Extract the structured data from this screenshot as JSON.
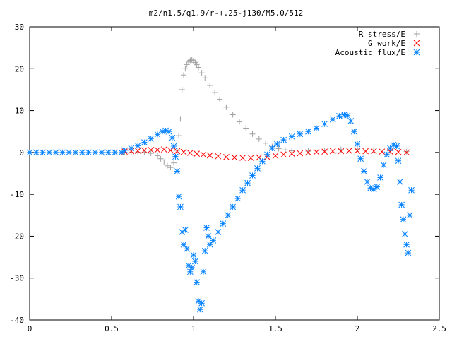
{
  "chart_data": {
    "type": "scatter",
    "title": "m2/n1.5/q1.9/r-+.25-j130/M5.0/512",
    "xlabel": "",
    "ylabel": "",
    "xlim": [
      0,
      2.5
    ],
    "ylim": [
      -40,
      30
    ],
    "x_ticks": [
      "0",
      "0.5",
      "1",
      "1.5",
      "2",
      "2.5"
    ],
    "y_ticks": [
      "30",
      "20",
      "10",
      "0",
      "-10",
      "-20",
      "-30",
      "-40"
    ],
    "grid": false,
    "legend_position": "top-right",
    "series": [
      {
        "name": "R stress/E",
        "marker": "plus",
        "color": "#a0a0a0",
        "points": [
          [
            0.58,
            0.0
          ],
          [
            0.62,
            0.0
          ],
          [
            0.66,
            0.0
          ],
          [
            0.7,
            0.0
          ],
          [
            0.74,
            -0.2
          ],
          [
            0.78,
            -0.8
          ],
          [
            0.8,
            -1.5
          ],
          [
            0.82,
            -2.3
          ],
          [
            0.84,
            -3.2
          ],
          [
            0.86,
            -3.6
          ],
          [
            0.88,
            -2.5
          ],
          [
            0.89,
            -1.0
          ],
          [
            0.9,
            0.5
          ],
          [
            0.91,
            4.0
          ],
          [
            0.92,
            8.0
          ],
          [
            0.93,
            15.0
          ],
          [
            0.94,
            18.5
          ],
          [
            0.95,
            20.0
          ],
          [
            0.96,
            21.0
          ],
          [
            0.97,
            21.6
          ],
          [
            0.98,
            22.0
          ],
          [
            0.99,
            22.1
          ],
          [
            1.0,
            21.9
          ],
          [
            1.01,
            21.5
          ],
          [
            1.02,
            21.0
          ],
          [
            1.03,
            20.3
          ],
          [
            1.05,
            19.0
          ],
          [
            1.07,
            17.8
          ],
          [
            1.1,
            16.0
          ],
          [
            1.13,
            14.3
          ],
          [
            1.16,
            12.7
          ],
          [
            1.2,
            10.8
          ],
          [
            1.24,
            9.0
          ],
          [
            1.28,
            7.3
          ],
          [
            1.32,
            5.8
          ],
          [
            1.36,
            4.4
          ],
          [
            1.4,
            3.2
          ],
          [
            1.44,
            2.2
          ],
          [
            1.48,
            1.4
          ],
          [
            1.52,
            0.9
          ],
          [
            1.56,
            0.6
          ],
          [
            1.6,
            0.4
          ],
          [
            1.7,
            0.3
          ],
          [
            1.8,
            0.5
          ],
          [
            1.9,
            0.7
          ],
          [
            2.0,
            0.8
          ],
          [
            2.1,
            0.6
          ],
          [
            2.2,
            0.4
          ],
          [
            2.3,
            0.2
          ]
        ]
      },
      {
        "name": "G work/E",
        "marker": "cross",
        "color": "#ff0000",
        "points": [
          [
            0.58,
            0.2
          ],
          [
            0.62,
            0.3
          ],
          [
            0.66,
            0.4
          ],
          [
            0.7,
            0.5
          ],
          [
            0.74,
            0.6
          ],
          [
            0.78,
            0.6
          ],
          [
            0.82,
            0.7
          ],
          [
            0.86,
            0.5
          ],
          [
            0.9,
            0.3
          ],
          [
            0.94,
            0.1
          ],
          [
            0.98,
            -0.1
          ],
          [
            1.02,
            -0.3
          ],
          [
            1.06,
            -0.5
          ],
          [
            1.1,
            -0.7
          ],
          [
            1.15,
            -0.9
          ],
          [
            1.2,
            -1.1
          ],
          [
            1.25,
            -1.2
          ],
          [
            1.3,
            -1.3
          ],
          [
            1.35,
            -1.3
          ],
          [
            1.4,
            -1.2
          ],
          [
            1.45,
            -1.1
          ],
          [
            1.5,
            -0.8
          ],
          [
            1.55,
            -0.5
          ],
          [
            1.6,
            -0.3
          ],
          [
            1.65,
            -0.2
          ],
          [
            1.7,
            0.0
          ],
          [
            1.75,
            0.1
          ],
          [
            1.8,
            0.2
          ],
          [
            1.85,
            0.3
          ],
          [
            1.9,
            0.3
          ],
          [
            1.95,
            0.4
          ],
          [
            2.0,
            0.4
          ],
          [
            2.05,
            0.3
          ],
          [
            2.1,
            0.3
          ],
          [
            2.15,
            0.2
          ],
          [
            2.2,
            0.2
          ],
          [
            2.25,
            0.1
          ],
          [
            2.3,
            0.0
          ]
        ]
      },
      {
        "name": "Acoustic flux/E",
        "marker": "star",
        "color": "#0080ff",
        "points": [
          [
            0.0,
            0.0
          ],
          [
            0.04,
            0.0
          ],
          [
            0.08,
            0.0
          ],
          [
            0.12,
            0.0
          ],
          [
            0.16,
            0.0
          ],
          [
            0.2,
            0.0
          ],
          [
            0.24,
            0.0
          ],
          [
            0.28,
            0.0
          ],
          [
            0.32,
            0.0
          ],
          [
            0.36,
            0.0
          ],
          [
            0.4,
            0.0
          ],
          [
            0.44,
            0.0
          ],
          [
            0.48,
            0.0
          ],
          [
            0.52,
            0.0
          ],
          [
            0.56,
            0.0
          ],
          [
            0.58,
            0.5
          ],
          [
            0.62,
            1.0
          ],
          [
            0.66,
            1.6
          ],
          [
            0.7,
            2.4
          ],
          [
            0.74,
            3.3
          ],
          [
            0.78,
            4.3
          ],
          [
            0.81,
            5.0
          ],
          [
            0.83,
            5.2
          ],
          [
            0.85,
            5.0
          ],
          [
            0.87,
            3.5
          ],
          [
            0.88,
            1.5
          ],
          [
            0.89,
            -1.0
          ],
          [
            0.9,
            -4.5
          ],
          [
            0.91,
            -10.5
          ],
          [
            0.92,
            -13.0
          ],
          [
            0.93,
            -19.0
          ],
          [
            0.94,
            -22.0
          ],
          [
            0.95,
            -18.5
          ],
          [
            0.96,
            -23.0
          ],
          [
            0.97,
            -27.0
          ],
          [
            0.98,
            -28.5
          ],
          [
            0.99,
            -27.5
          ],
          [
            1.0,
            -24.5
          ],
          [
            1.01,
            -26.0
          ],
          [
            1.02,
            -31.0
          ],
          [
            1.03,
            -35.5
          ],
          [
            1.04,
            -37.5
          ],
          [
            1.05,
            -36.0
          ],
          [
            1.06,
            -28.5
          ],
          [
            1.07,
            -23.5
          ],
          [
            1.08,
            -18.0
          ],
          [
            1.09,
            -20.0
          ],
          [
            1.1,
            -22.0
          ],
          [
            1.12,
            -21.0
          ],
          [
            1.15,
            -19.0
          ],
          [
            1.18,
            -17.0
          ],
          [
            1.21,
            -15.0
          ],
          [
            1.24,
            -13.0
          ],
          [
            1.27,
            -11.0
          ],
          [
            1.3,
            -9.0
          ],
          [
            1.33,
            -7.3
          ],
          [
            1.36,
            -5.5
          ],
          [
            1.39,
            -3.8
          ],
          [
            1.42,
            -2.1
          ],
          [
            1.45,
            -0.5
          ],
          [
            1.48,
            1.0
          ],
          [
            1.51,
            2.0
          ],
          [
            1.55,
            3.0
          ],
          [
            1.6,
            3.8
          ],
          [
            1.65,
            4.4
          ],
          [
            1.7,
            5.0
          ],
          [
            1.75,
            5.8
          ],
          [
            1.8,
            6.8
          ],
          [
            1.85,
            7.9
          ],
          [
            1.89,
            8.7
          ],
          [
            1.92,
            9.0
          ],
          [
            1.94,
            8.8
          ],
          [
            1.96,
            7.5
          ],
          [
            1.98,
            5.0
          ],
          [
            2.0,
            2.0
          ],
          [
            2.02,
            -1.5
          ],
          [
            2.04,
            -4.5
          ],
          [
            2.06,
            -7.0
          ],
          [
            2.08,
            -8.5
          ],
          [
            2.1,
            -8.8
          ],
          [
            2.12,
            -8.2
          ],
          [
            2.14,
            -6.0
          ],
          [
            2.16,
            -3.0
          ],
          [
            2.18,
            -0.5
          ],
          [
            2.2,
            1.0
          ],
          [
            2.22,
            1.8
          ],
          [
            2.24,
            1.5
          ],
          [
            2.25,
            -2.0
          ],
          [
            2.26,
            -7.0
          ],
          [
            2.27,
            -12.5
          ],
          [
            2.28,
            -16.0
          ],
          [
            2.29,
            -19.5
          ],
          [
            2.3,
            -22.0
          ],
          [
            2.31,
            -24.0
          ],
          [
            2.32,
            -15.0
          ],
          [
            2.33,
            -9.0
          ]
        ]
      }
    ]
  }
}
